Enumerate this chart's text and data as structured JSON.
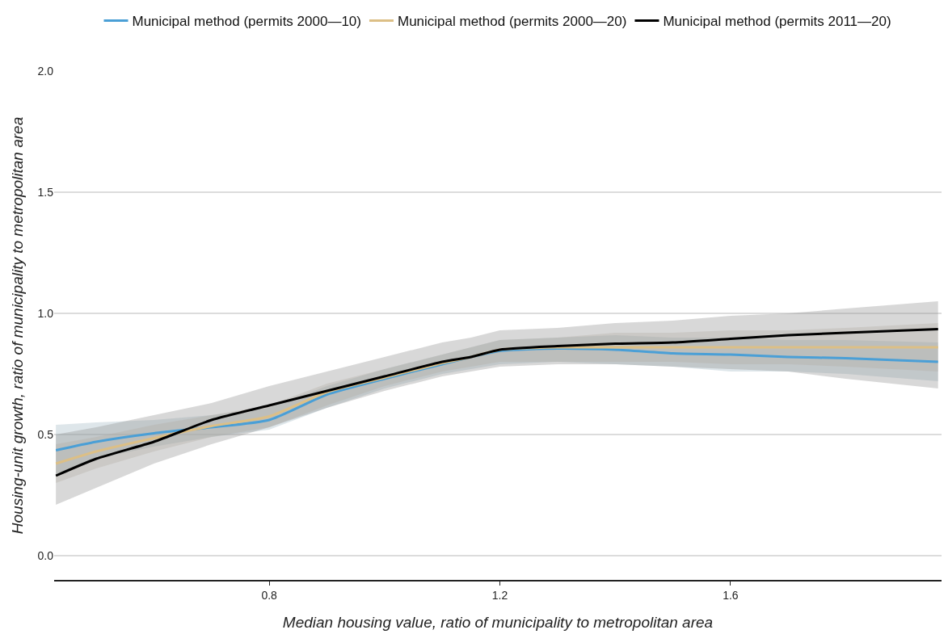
{
  "chart_data": {
    "type": "line",
    "xlabel": "Median housing value, ratio of municipality to metropolitan area",
    "ylabel": "Housing-unit growth, ratio of municipality to metropolitan area",
    "x": [
      0.43,
      0.5,
      0.6,
      0.7,
      0.8,
      0.9,
      1.0,
      1.1,
      1.15,
      1.2,
      1.3,
      1.4,
      1.5,
      1.6,
      1.7,
      1.8,
      1.96
    ],
    "series": [
      {
        "name": "Municipal method (permits 2000—10)",
        "color": "#4a9fd6",
        "values": [
          0.435,
          0.47,
          0.505,
          0.53,
          0.56,
          0.665,
          0.73,
          0.79,
          0.82,
          0.845,
          0.855,
          0.85,
          0.835,
          0.83,
          0.82,
          0.815,
          0.8
        ],
        "lower": [
          0.33,
          0.4,
          0.45,
          0.49,
          0.52,
          0.61,
          0.69,
          0.75,
          0.77,
          0.79,
          0.8,
          0.79,
          0.78,
          0.76,
          0.76,
          0.75,
          0.72
        ],
        "upper": [
          0.54,
          0.55,
          0.56,
          0.58,
          0.61,
          0.7,
          0.77,
          0.83,
          0.86,
          0.89,
          0.9,
          0.91,
          0.9,
          0.9,
          0.89,
          0.89,
          0.88
        ]
      },
      {
        "name": "Municipal method (permits 2000—20)",
        "color": "#dcbf86",
        "values": [
          0.38,
          0.43,
          0.485,
          0.535,
          0.575,
          0.675,
          0.735,
          0.795,
          0.82,
          0.85,
          0.86,
          0.86,
          0.86,
          0.86,
          0.86,
          0.86,
          0.86
        ],
        "lower": [
          0.3,
          0.36,
          0.43,
          0.49,
          0.53,
          0.62,
          0.7,
          0.76,
          0.78,
          0.8,
          0.8,
          0.8,
          0.8,
          0.79,
          0.79,
          0.78,
          0.76
        ],
        "upper": [
          0.46,
          0.49,
          0.54,
          0.58,
          0.62,
          0.71,
          0.77,
          0.83,
          0.86,
          0.89,
          0.9,
          0.92,
          0.92,
          0.93,
          0.93,
          0.94,
          0.96
        ]
      },
      {
        "name": "Municipal method (permits 2011—20)",
        "color": "#000000",
        "values": [
          0.33,
          0.4,
          0.47,
          0.56,
          0.62,
          0.68,
          0.74,
          0.8,
          0.82,
          0.85,
          0.865,
          0.875,
          0.88,
          0.895,
          0.91,
          0.92,
          0.935
        ],
        "lower": [
          0.21,
          0.28,
          0.38,
          0.46,
          0.53,
          0.61,
          0.68,
          0.74,
          0.76,
          0.78,
          0.79,
          0.79,
          0.78,
          0.77,
          0.76,
          0.73,
          0.69
        ],
        "upper": [
          0.5,
          0.53,
          0.58,
          0.63,
          0.7,
          0.76,
          0.82,
          0.88,
          0.9,
          0.93,
          0.94,
          0.96,
          0.97,
          0.99,
          1.0,
          1.02,
          1.05
        ]
      }
    ],
    "xlim": [
      0.427,
      1.966
    ],
    "xticks": [
      0.8,
      1.2,
      1.6
    ],
    "ylim": [
      -0.1,
      2.0
    ],
    "yticks": [
      {
        "value": 0,
        "label": "0.0"
      },
      {
        "value": 0.5,
        "label": "0.5"
      },
      {
        "value": 1,
        "label": "1.0"
      },
      {
        "value": 1.5,
        "label": "1.5"
      },
      {
        "value": 2,
        "label": "2.0"
      }
    ],
    "grid": "y",
    "legend": "top",
    "line_style": "solid",
    "marker": "none"
  }
}
